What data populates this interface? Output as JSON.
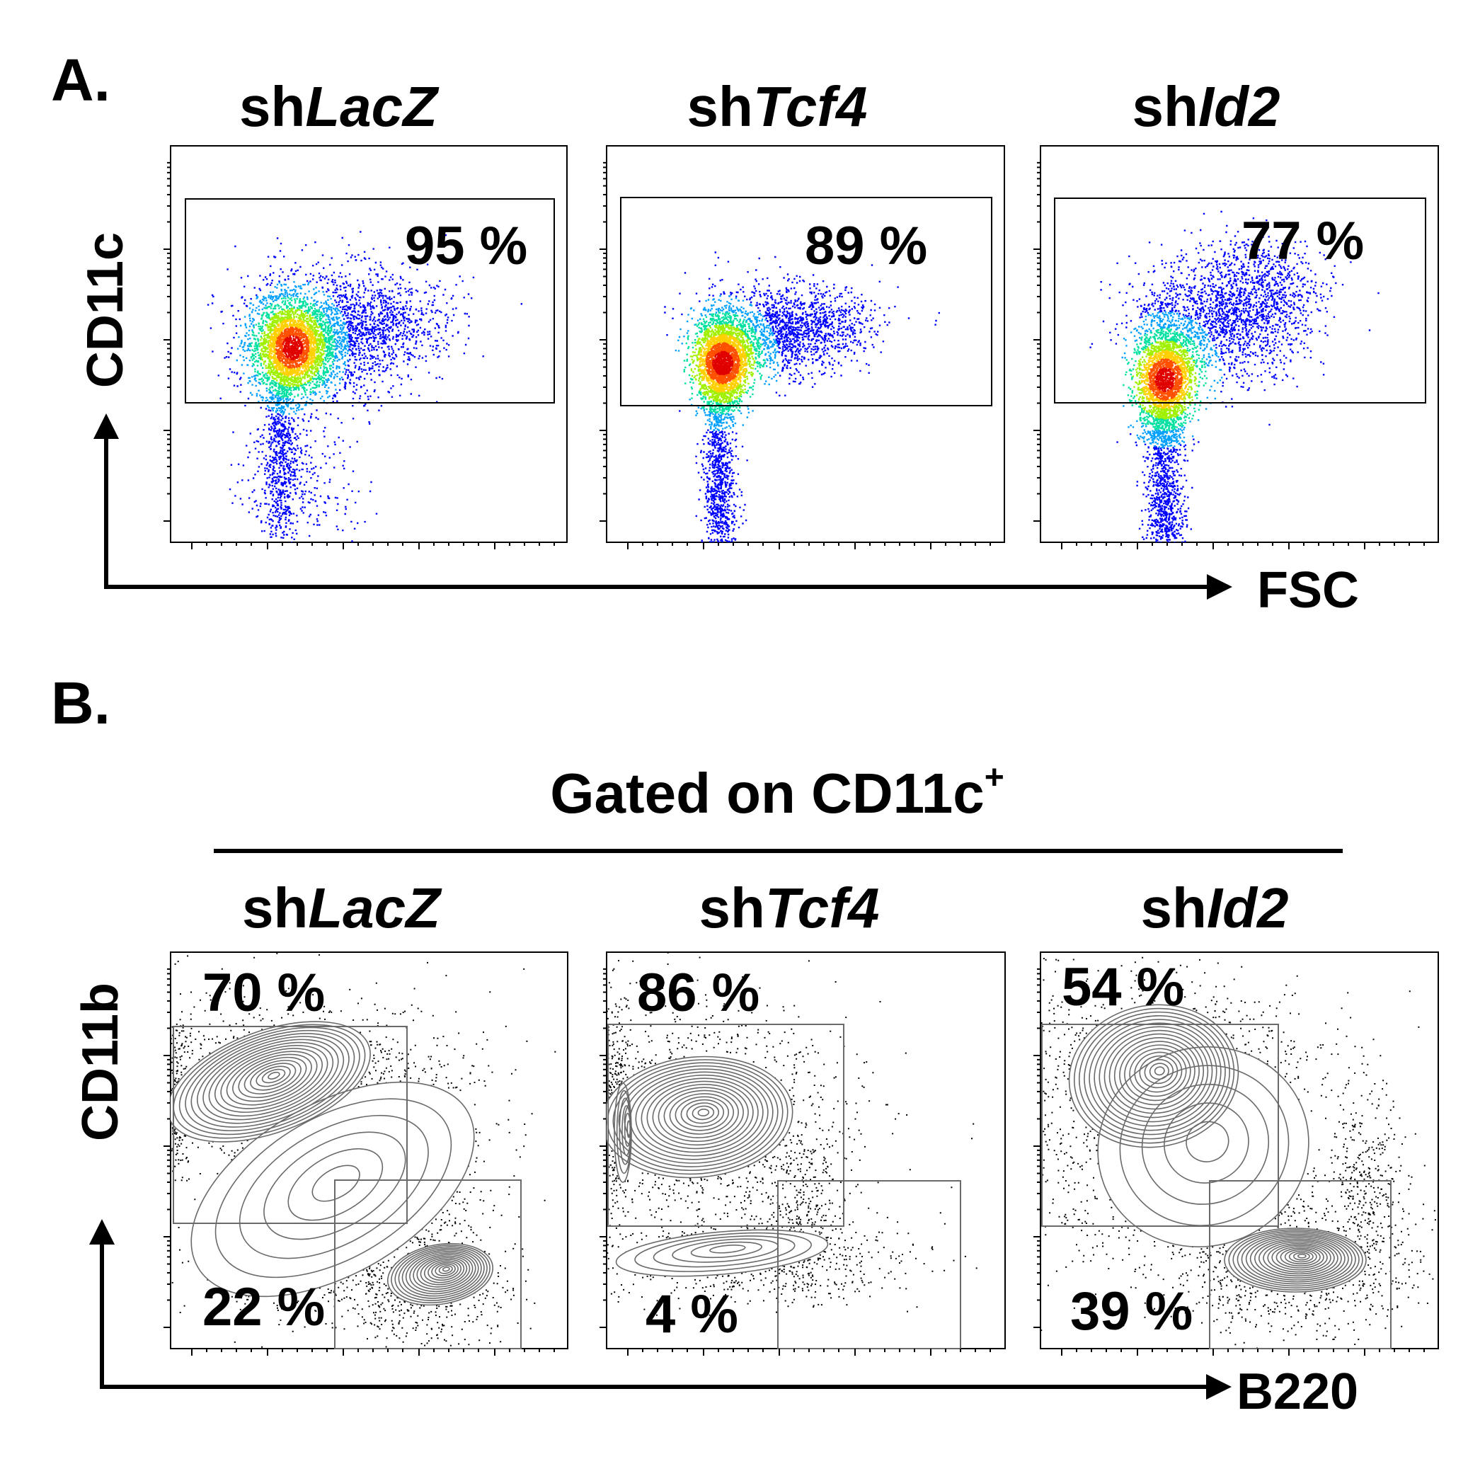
{
  "chart_data": [
    {
      "type": "scatter",
      "panel": "A.",
      "xlabel": "FSC",
      "ylabel": "CD11c",
      "panels": [
        {
          "prefix": "sh",
          "gene": "LacZ",
          "gates": [
            {
              "label": "95 %",
              "value": 95
            }
          ]
        },
        {
          "prefix": "sh",
          "gene": "Tcf4",
          "gates": [
            {
              "label": "89 %",
              "value": 89
            }
          ]
        },
        {
          "prefix": "sh",
          "gene": "Id2",
          "gates": [
            {
              "label": "77 %",
              "value": 77
            }
          ]
        }
      ]
    },
    {
      "type": "scatter",
      "panel": "B.",
      "title": {
        "text": "Gated on CD11c",
        "sup": "+"
      },
      "xlabel": "B220",
      "ylabel": "CD11b",
      "panels": [
        {
          "prefix": "sh",
          "gene": "LacZ",
          "gates": [
            {
              "label": "70 %",
              "value": 70
            },
            {
              "label": "22 %",
              "value": 22
            }
          ]
        },
        {
          "prefix": "sh",
          "gene": "Tcf4",
          "gates": [
            {
              "label": "86 %",
              "value": 86
            },
            {
              "label": "4 %",
              "value": 4
            }
          ]
        },
        {
          "prefix": "sh",
          "gene": "Id2",
          "gates": [
            {
              "label": "54 %",
              "value": 54
            },
            {
              "label": "39 %",
              "value": 39
            }
          ]
        }
      ]
    }
  ],
  "colors": {
    "density": [
      "#0000ff",
      "#00a0ff",
      "#00e0a0",
      "#a0f000",
      "#ffd000",
      "#ff5000",
      "#e00000"
    ],
    "contour": "#6a6a6a",
    "dots": "#000000",
    "axis": "#000000"
  }
}
